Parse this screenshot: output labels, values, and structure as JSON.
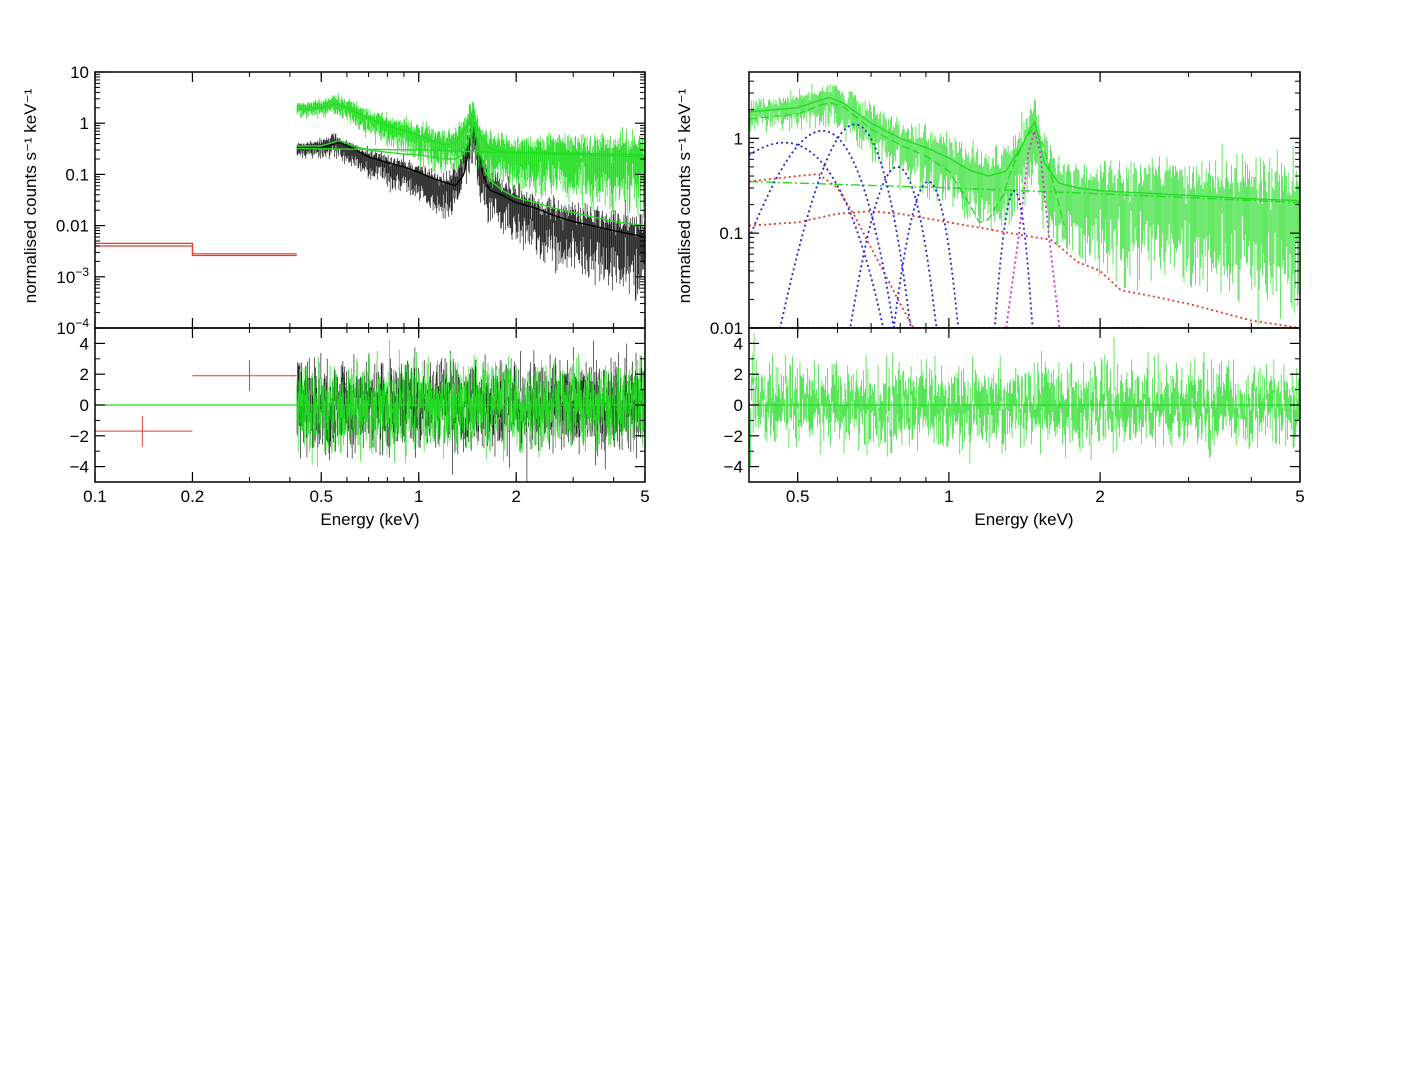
{
  "chart_data": [
    {
      "type": "line",
      "panel": "left-spectrum",
      "title": "",
      "xlabel": "Energy (keV)",
      "ylabel": "normalised counts s⁻¹ keV⁻¹",
      "xscale": "log",
      "yscale": "log",
      "xlim": [
        0.1,
        5
      ],
      "ylim": [
        0.0001,
        10
      ],
      "x_ticks": [
        {
          "v": 0.1,
          "t": "0.1"
        },
        {
          "v": 0.2,
          "t": "0.2"
        },
        {
          "v": 0.5,
          "t": "0.5"
        },
        {
          "v": 1,
          "t": "1"
        },
        {
          "v": 2,
          "t": "2"
        },
        {
          "v": 5,
          "t": "5"
        }
      ],
      "y_ticks": [
        {
          "v": 10,
          "t": "10"
        },
        {
          "v": 1,
          "t": "1"
        },
        {
          "v": 0.1,
          "t": "0.1"
        },
        {
          "v": 0.01,
          "t": "0.01"
        },
        {
          "v": 0.001,
          "t": "10",
          "sup": "−3"
        },
        {
          "v": 0.0001,
          "t": "10",
          "sup": "−4"
        }
      ],
      "series": [
        {
          "name": "red data",
          "color": "#e8392f",
          "style": "step",
          "x": [
            0.1,
            0.2,
            0.2,
            0.42
          ],
          "y": [
            0.0045,
            0.0045,
            0.0028,
            0.0028
          ]
        },
        {
          "name": "red model",
          "color": "#e8392f",
          "style": "step",
          "x": [
            0.1,
            0.2,
            0.2,
            0.42
          ],
          "y": [
            0.004,
            0.004,
            0.0026,
            0.0026
          ]
        },
        {
          "name": "black data",
          "color": "#222222",
          "style": "noisy",
          "x": [
            0.42,
            0.5,
            0.55,
            0.6,
            0.7,
            0.8,
            0.9,
            1.0,
            1.1,
            1.2,
            1.3,
            1.4,
            1.48,
            1.55,
            1.65,
            1.8,
            2.0,
            2.3,
            3.0,
            4.0,
            5.0
          ],
          "y": [
            0.35,
            0.4,
            0.5,
            0.35,
            0.22,
            0.17,
            0.14,
            0.1,
            0.08,
            0.06,
            0.08,
            0.3,
            0.8,
            0.2,
            0.07,
            0.05,
            0.035,
            0.02,
            0.012,
            0.008,
            0.006
          ]
        },
        {
          "name": "black model",
          "color": "#000000",
          "style": "line",
          "x": [
            0.42,
            0.5,
            0.57,
            0.62,
            0.7,
            0.8,
            0.9,
            1.0,
            1.1,
            1.2,
            1.3,
            1.38,
            1.44,
            1.48,
            1.52,
            1.58,
            1.65,
            1.8,
            2.0,
            2.3,
            2.6,
            3.0,
            4.0,
            5.0
          ],
          "y": [
            0.33,
            0.33,
            0.42,
            0.33,
            0.22,
            0.17,
            0.14,
            0.11,
            0.085,
            0.07,
            0.06,
            0.1,
            0.4,
            0.75,
            0.4,
            0.1,
            0.05,
            0.04,
            0.028,
            0.022,
            0.016,
            0.012,
            0.008,
            0.006
          ]
        },
        {
          "name": "green data",
          "color": "#22dd22",
          "style": "noisy",
          "x": [
            0.42,
            0.5,
            0.55,
            0.6,
            0.7,
            0.8,
            0.9,
            1.0,
            1.1,
            1.2,
            1.3,
            1.4,
            1.48,
            1.55,
            1.7,
            2.0,
            3.0,
            4.0,
            5.0
          ],
          "y": [
            2.1,
            2.3,
            2.8,
            2.4,
            1.4,
            1.0,
            0.8,
            0.65,
            0.5,
            0.42,
            0.45,
            0.9,
            1.6,
            0.6,
            0.35,
            0.3,
            0.28,
            0.26,
            0.25
          ]
        },
        {
          "name": "green model",
          "color": "#22dd22",
          "style": "line",
          "x": [
            0.42,
            0.5,
            0.55,
            0.6,
            0.7,
            0.8,
            0.9,
            1.0,
            1.1,
            1.2,
            1.3,
            1.4,
            1.48,
            1.55,
            1.65,
            1.8,
            2.0,
            3.0,
            4.0,
            5.0
          ],
          "y": [
            1.8,
            2.0,
            2.4,
            2.0,
            1.25,
            0.9,
            0.72,
            0.58,
            0.45,
            0.38,
            0.4,
            0.85,
            1.5,
            0.55,
            0.32,
            0.28,
            0.27,
            0.26,
            0.25,
            0.24
          ]
        },
        {
          "name": "green continuum",
          "color": "#22dd22",
          "style": "line",
          "x": [
            0.42,
            1.0,
            5.0
          ],
          "y": [
            0.32,
            0.3,
            0.22
          ]
        },
        {
          "name": "green component",
          "color": "#22dd22",
          "style": "line",
          "x": [
            0.42,
            0.5,
            0.57,
            0.62,
            0.7,
            0.8,
            0.9,
            1.0,
            1.1,
            1.2,
            1.3,
            1.38,
            1.44,
            1.48,
            1.52,
            1.58,
            1.65,
            1.8,
            2.0,
            2.3,
            2.6,
            3.0,
            4.0,
            5.0
          ],
          "y": [
            0.36,
            0.36,
            0.46,
            0.37,
            0.3,
            0.27,
            0.25,
            0.24,
            0.22,
            0.2,
            0.2,
            0.25,
            0.6,
            1.0,
            0.5,
            0.15,
            0.08,
            0.05,
            0.035,
            0.028,
            0.022,
            0.018,
            0.012,
            0.01
          ]
        }
      ]
    },
    {
      "type": "scatter",
      "panel": "left-residuals",
      "xlabel": "Energy (keV)",
      "ylabel": "",
      "xscale": "log",
      "xlim": [
        0.1,
        5
      ],
      "ylim": [
        -5,
        5
      ],
      "x_ticks": [
        {
          "v": 0.1,
          "t": "0.1"
        },
        {
          "v": 0.2,
          "t": "0.2"
        },
        {
          "v": 0.5,
          "t": "0.5"
        },
        {
          "v": 1,
          "t": "1"
        },
        {
          "v": 2,
          "t": "2"
        },
        {
          "v": 5,
          "t": "5"
        }
      ],
      "y_ticks": [
        {
          "v": 4,
          "t": "4"
        },
        {
          "v": 2,
          "t": "2"
        },
        {
          "v": 0,
          "t": "0"
        },
        {
          "v": -2,
          "t": "−2"
        },
        {
          "v": -4,
          "t": "−4"
        }
      ],
      "series": [
        {
          "name": "red residuals",
          "color": "#e8392f",
          "x_ranges": [
            [
              0.1,
              0.2
            ],
            [
              0.2,
              0.42
            ]
          ],
          "x": [
            0.14,
            0.3
          ],
          "y": [
            -1.7,
            1.9
          ],
          "yerr": [
            1.0,
            1.0
          ]
        },
        {
          "name": "black residuals",
          "color": "#222222",
          "x_range": [
            0.42,
            5.0
          ],
          "sigma": 1.1
        },
        {
          "name": "green residuals",
          "color": "#22dd22",
          "x_range": [
            0.42,
            5.0
          ],
          "sigma": 1.0
        },
        {
          "name": "zero line",
          "color": "#22dd22",
          "x": [
            0.1,
            5.0
          ],
          "y": [
            0,
            0
          ]
        }
      ]
    },
    {
      "type": "line",
      "panel": "right-spectrum",
      "xlabel": "Energy (keV)",
      "ylabel": "normalised counts s⁻¹ keV⁻¹",
      "xscale": "log",
      "yscale": "log",
      "xlim": [
        0.4,
        5
      ],
      "ylim": [
        0.01,
        5
      ],
      "x_ticks": [
        {
          "v": 0.5,
          "t": "0.5"
        },
        {
          "v": 1,
          "t": "1"
        },
        {
          "v": 2,
          "t": "2"
        },
        {
          "v": 5,
          "t": "5"
        }
      ],
      "y_ticks": [
        {
          "v": 1,
          "t": "1"
        },
        {
          "v": 0.1,
          "t": "0.1"
        },
        {
          "v": 0.01,
          "t": "0.01"
        }
      ],
      "series": [
        {
          "name": "green data",
          "color": "#22dd22",
          "style": "noisy",
          "x": [
            0.4,
            0.5,
            0.55,
            0.58,
            0.62,
            0.7,
            0.8,
            0.9,
            1.0,
            1.1,
            1.2,
            1.3,
            1.4,
            1.48,
            1.55,
            1.65,
            1.8,
            2.0,
            3.0,
            4.0,
            5.0
          ],
          "y": [
            2.1,
            2.3,
            2.8,
            3.0,
            2.6,
            1.6,
            1.1,
            0.85,
            0.7,
            0.5,
            0.45,
            0.5,
            0.9,
            1.6,
            0.6,
            0.35,
            0.32,
            0.3,
            0.27,
            0.25,
            0.24
          ]
        },
        {
          "name": "total model",
          "color": "#22dd22",
          "style": "line",
          "x": [
            0.4,
            0.5,
            0.55,
            0.58,
            0.62,
            0.7,
            0.8,
            0.9,
            1.0,
            1.1,
            1.2,
            1.3,
            1.4,
            1.48,
            1.55,
            1.65,
            1.8,
            2.0,
            3.0,
            4.0,
            5.0
          ],
          "y": [
            1.9,
            2.1,
            2.5,
            2.7,
            2.3,
            1.45,
            1.0,
            0.8,
            0.62,
            0.46,
            0.4,
            0.45,
            0.85,
            1.5,
            0.55,
            0.34,
            0.3,
            0.28,
            0.25,
            0.23,
            0.22
          ]
        },
        {
          "name": "model component (dashed)",
          "color": "#22dd22",
          "style": "dashed",
          "x": [
            0.4,
            0.5,
            0.55,
            0.58,
            0.62,
            0.7,
            0.8,
            0.9,
            1.0,
            1.05,
            1.1,
            1.15,
            1.2,
            1.28,
            1.35,
            1.42,
            1.48,
            1.55,
            1.62,
            1.7
          ],
          "y": [
            1.6,
            1.8,
            2.2,
            2.4,
            2.1,
            1.25,
            0.85,
            0.65,
            0.45,
            0.3,
            0.2,
            0.13,
            0.14,
            0.25,
            0.55,
            1.0,
            1.3,
            0.8,
            0.3,
            0.12
          ]
        },
        {
          "name": "continuum (dash-dot)",
          "color": "#22dd22",
          "style": "dashdot",
          "x": [
            0.4,
            1.0,
            2.0,
            5.0
          ],
          "y": [
            0.35,
            0.3,
            0.26,
            0.21
          ]
        },
        {
          "name": "red component 1",
          "color": "#e8392f",
          "style": "dotted",
          "x": [
            0.4,
            0.5,
            0.55,
            0.6,
            0.65,
            0.7,
            0.75,
            0.8,
            0.85
          ],
          "y": [
            0.35,
            0.4,
            0.42,
            0.3,
            0.15,
            0.07,
            0.035,
            0.018,
            0.01
          ]
        },
        {
          "name": "red component 2",
          "color": "#e8392f",
          "style": "dotted",
          "x": [
            0.4,
            0.5,
            0.6,
            0.7,
            0.8,
            1.0,
            1.2,
            1.4,
            1.6,
            1.7,
            1.8,
            2.0,
            2.2,
            2.5,
            3.0,
            4.0,
            5.0
          ],
          "y": [
            0.12,
            0.13,
            0.16,
            0.17,
            0.16,
            0.13,
            0.11,
            0.095,
            0.085,
            0.065,
            0.05,
            0.04,
            0.025,
            0.022,
            0.018,
            0.012,
            0.01
          ]
        },
        {
          "name": "magenta component",
          "color": "#dd22dd",
          "style": "dotted",
          "x": [
            1.3,
            1.38,
            1.44,
            1.48,
            1.52,
            1.58,
            1.66
          ],
          "y": [
            0.01,
            0.1,
            0.7,
            1.2,
            0.7,
            0.1,
            0.01
          ]
        }
      ],
      "gaussians": [
        {
          "color": "#2222dd",
          "center": 0.47,
          "peak": 0.9,
          "width": 0.09
        },
        {
          "color": "#2222dd",
          "center": 0.56,
          "peak": 1.2,
          "width": 0.07
        },
        {
          "color": "#2222dd",
          "center": 0.65,
          "peak": 1.4,
          "width": 0.06
        },
        {
          "color": "#2222dd",
          "center": 0.79,
          "peak": 0.5,
          "width": 0.055
        },
        {
          "color": "#2222dd",
          "center": 0.91,
          "peak": 0.35,
          "width": 0.05
        },
        {
          "color": "#2222dd",
          "center": 1.35,
          "peak": 0.28,
          "width": 0.045
        }
      ]
    },
    {
      "type": "scatter",
      "panel": "right-residuals",
      "xlabel": "Energy (keV)",
      "xscale": "log",
      "xlim": [
        0.4,
        5
      ],
      "ylim": [
        -5,
        5
      ],
      "x_ticks": [
        {
          "v": 0.5,
          "t": "0.5"
        },
        {
          "v": 1,
          "t": "1"
        },
        {
          "v": 2,
          "t": "2"
        },
        {
          "v": 5,
          "t": "5"
        }
      ],
      "y_ticks": [
        {
          "v": 4,
          "t": "4"
        },
        {
          "v": 2,
          "t": "2"
        },
        {
          "v": 0,
          "t": "0"
        },
        {
          "v": -2,
          "t": "−2"
        },
        {
          "v": -4,
          "t": "−4"
        }
      ],
      "series": [
        {
          "name": "green residuals",
          "color": "#22dd22",
          "x_range": [
            0.4,
            5.0
          ],
          "sigma": 1.0
        },
        {
          "name": "zero line",
          "color": "#22dd22",
          "x": [
            0.4,
            5.0
          ],
          "y": [
            0,
            0
          ]
        }
      ]
    }
  ]
}
